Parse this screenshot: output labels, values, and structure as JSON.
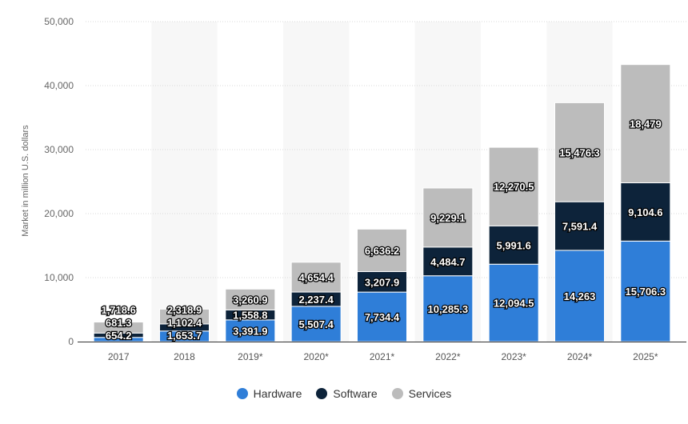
{
  "chart_data": {
    "type": "bar",
    "stacked": true,
    "categories": [
      "2017",
      "2018",
      "2019*",
      "2020*",
      "2021*",
      "2022*",
      "2023*",
      "2024*",
      "2025*"
    ],
    "series": [
      {
        "name": "Hardware",
        "color": "#2f7ed8",
        "values": [
          654.2,
          1653.7,
          3391.9,
          5507.4,
          7734.4,
          10285.3,
          12094.5,
          14263,
          15706.3
        ],
        "labels": [
          "654.2",
          "1,653.7",
          "3,391.9",
          "5,507.4",
          "7,734.4",
          "10,285.3",
          "12,094.5",
          "14,263",
          "15,706.3"
        ]
      },
      {
        "name": "Software",
        "color": "#0d233a",
        "values": [
          681.3,
          1102.4,
          1558.8,
          2237.4,
          3207.9,
          4484.7,
          5991.6,
          7591.4,
          9104.6
        ],
        "labels": [
          "681.3",
          "1,102.4",
          "1,558.8",
          "2,237.4",
          "3,207.9",
          "4,484.7",
          "5,991.6",
          "7,591.4",
          "9,104.6"
        ]
      },
      {
        "name": "Services",
        "color": "#bcbcbc",
        "values": [
          1718.6,
          2318.9,
          3260.9,
          4654.4,
          6636.2,
          9229.1,
          12270.5,
          15476.3,
          18479
        ],
        "labels": [
          "1,718.6",
          "2,318.9",
          "3,260.9",
          "4,654.4",
          "6,636.2",
          "9,229.1",
          "12,270.5",
          "15,476.3",
          "18,479"
        ]
      }
    ],
    "ylabel": "Market in million U.S. dollars",
    "ylim": [
      0,
      50000
    ],
    "yticks": [
      "0",
      "10,000",
      "20,000",
      "30,000",
      "40,000",
      "50,000"
    ],
    "legend": "bottom",
    "grid": true
  }
}
